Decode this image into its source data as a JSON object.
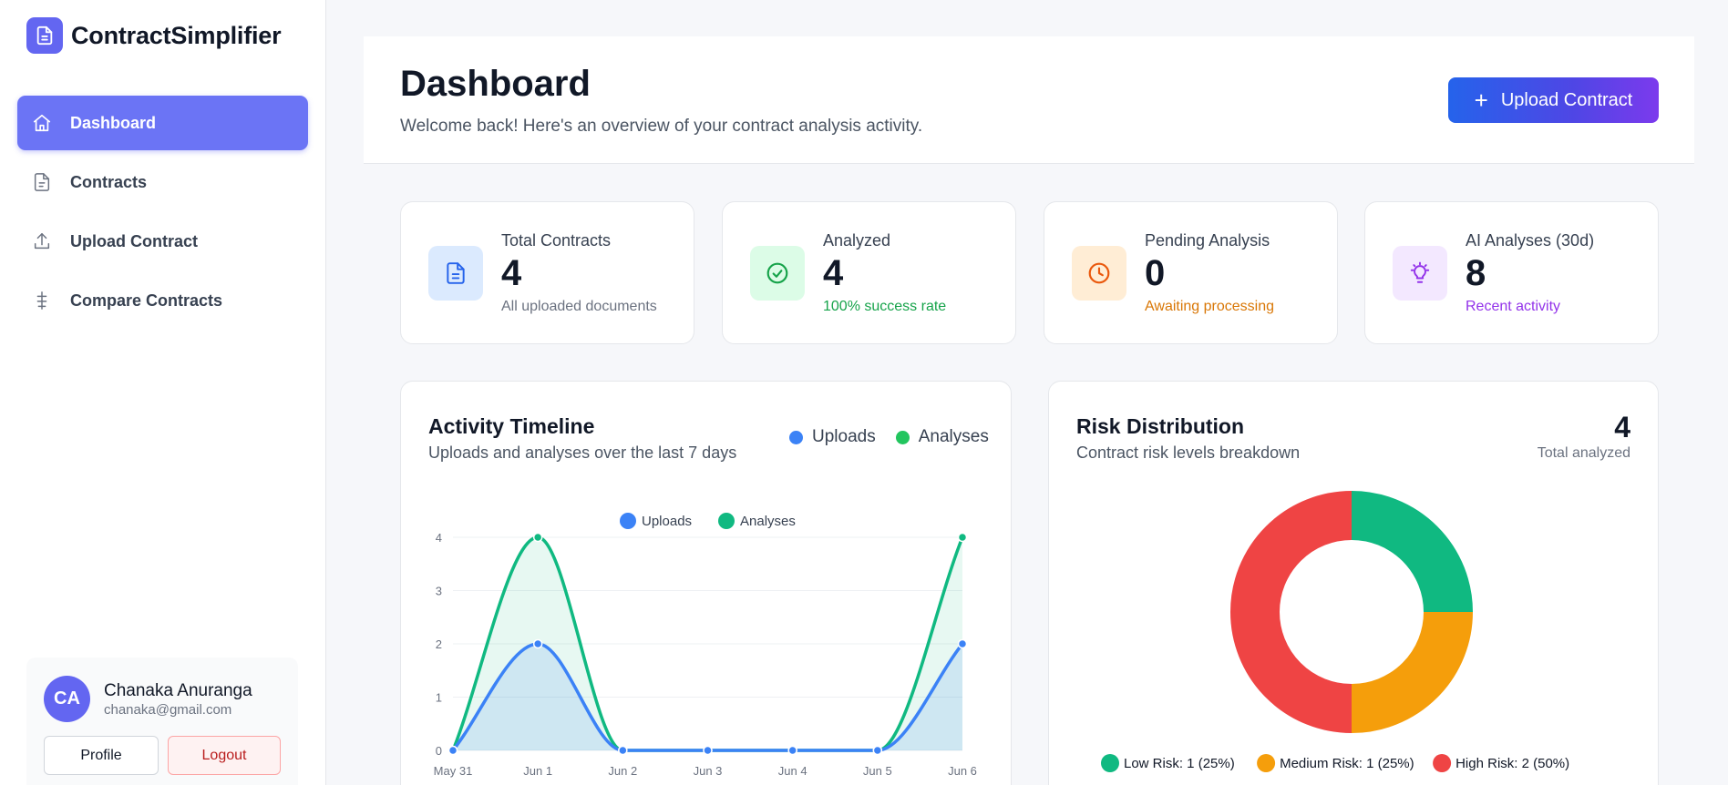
{
  "app": {
    "name": "ContractSimplifier"
  },
  "sidebar": {
    "items": [
      {
        "label": "Dashboard",
        "icon": "home-icon",
        "active": true
      },
      {
        "label": "Contracts",
        "icon": "document-icon",
        "active": false
      },
      {
        "label": "Upload Contract",
        "icon": "upload-icon",
        "active": false
      },
      {
        "label": "Compare Contracts",
        "icon": "compare-icon",
        "active": false
      }
    ],
    "user": {
      "initials": "CA",
      "name": "Chanaka Anuranga",
      "email": "chanaka@gmail.com",
      "profile_label": "Profile",
      "logout_label": "Logout"
    }
  },
  "header": {
    "title": "Dashboard",
    "subtitle": "Welcome back! Here's an overview of your contract analysis activity.",
    "upload_label": "Upload Contract"
  },
  "stats": [
    {
      "label": "Total Contracts",
      "value": "4",
      "note": "All uploaded documents",
      "note_color": "#6b7280",
      "icon": "document-icon",
      "icon_bg": "#dbeafe",
      "icon_color": "#2563eb"
    },
    {
      "label": "Analyzed",
      "value": "4",
      "note": "100% success rate",
      "note_color": "#16a34a",
      "icon": "check-circle-icon",
      "icon_bg": "#dcfce7",
      "icon_color": "#16a34a"
    },
    {
      "label": "Pending Analysis",
      "value": "0",
      "note": "Awaiting processing",
      "note_color": "#d97706",
      "icon": "clock-icon",
      "icon_bg": "#ffedd5",
      "icon_color": "#ea580c"
    },
    {
      "label": "AI Analyses (30d)",
      "value": "8",
      "note": "Recent activity",
      "note_color": "#9333ea",
      "icon": "lightbulb-icon",
      "icon_bg": "#f3e8ff",
      "icon_color": "#9333ea"
    }
  ],
  "activity": {
    "title": "Activity Timeline",
    "subtitle": "Uploads and analyses over the last 7 days",
    "legend": [
      {
        "name": "Uploads",
        "color": "#3b82f6"
      },
      {
        "name": "Analyses",
        "color": "#22c55e"
      }
    ]
  },
  "risk": {
    "title": "Risk Distribution",
    "subtitle": "Contract risk levels breakdown",
    "total": "4",
    "total_label": "Total analyzed"
  },
  "chart_data": [
    {
      "type": "area",
      "categories": [
        "May 31",
        "Jun 1",
        "Jun 2",
        "Jun 3",
        "Jun 4",
        "Jun 5",
        "Jun 6"
      ],
      "series": [
        {
          "name": "Uploads",
          "values": [
            0,
            2,
            0,
            0,
            0,
            0,
            2
          ],
          "color": "#3b82f6"
        },
        {
          "name": "Analyses",
          "values": [
            0,
            4,
            0,
            0,
            0,
            0,
            4
          ],
          "color": "#10b981"
        }
      ],
      "ylim": [
        0,
        4
      ],
      "yticks": [
        0,
        1,
        2,
        3,
        4
      ],
      "legend": "top-center",
      "grid": true
    },
    {
      "type": "pie",
      "donut": true,
      "slices": [
        {
          "label": "Low Risk: 1 (25%)",
          "value": 1,
          "color": "#10b981"
        },
        {
          "label": "Medium Risk: 1 (25%)",
          "value": 1,
          "color": "#f59e0b"
        },
        {
          "label": "High Risk: 2 (50%)",
          "value": 2,
          "color": "#ef4444"
        }
      ],
      "legend": "bottom"
    }
  ]
}
